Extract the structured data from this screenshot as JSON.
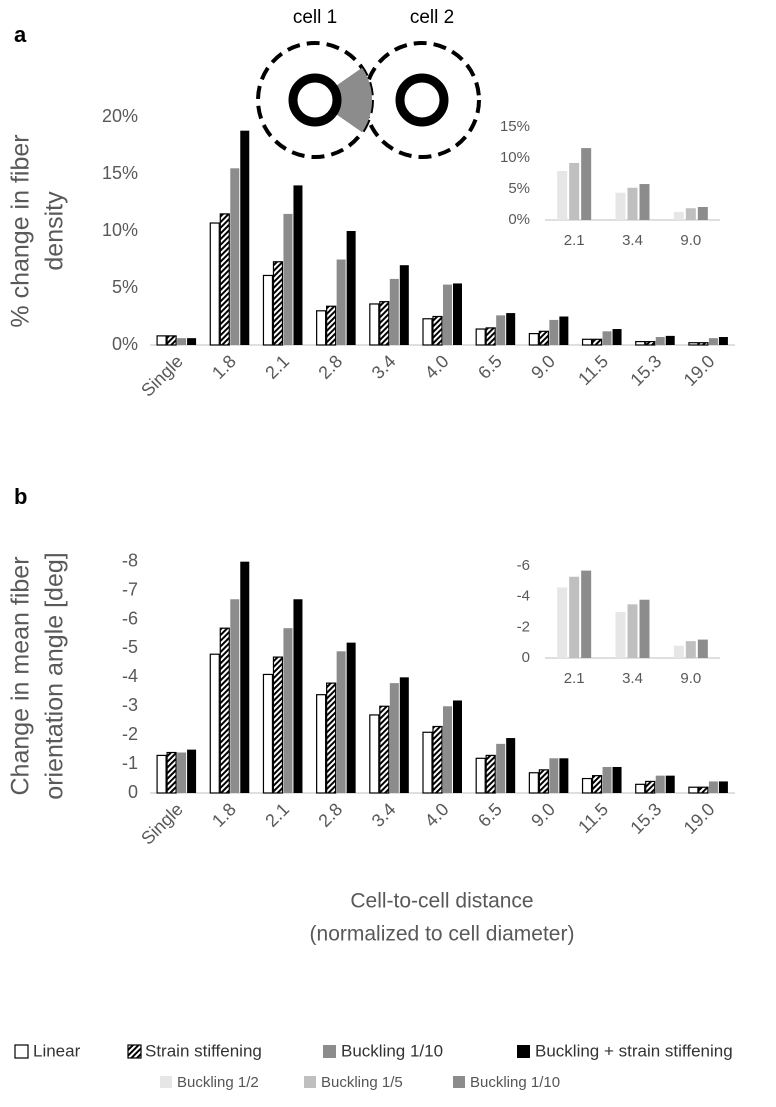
{
  "panels": [
    "a",
    "b"
  ],
  "annotations": [
    "cell 1",
    "cell 2"
  ],
  "chart_data": [
    {
      "type": "bar",
      "ylabel": [
        "% change in fiber",
        "density"
      ],
      "categories": [
        "Single",
        "1.8",
        "2.1",
        "2.8",
        "3.4",
        "4.0",
        "6.5",
        "9.0",
        "11.5",
        "15.3",
        "19.0"
      ],
      "ylim": [
        0,
        20
      ],
      "yticks": [
        {
          "value": 0,
          "label": "0%"
        },
        {
          "value": 5,
          "label": "5%"
        },
        {
          "value": 10,
          "label": "10%"
        },
        {
          "value": 15,
          "label": "15%"
        },
        {
          "value": 20,
          "label": "20%"
        }
      ],
      "series": [
        {
          "name": "Linear",
          "color": "#ffffff",
          "values": [
            0.8,
            10.7,
            6.1,
            3.0,
            3.6,
            2.3,
            1.4,
            1.0,
            0.5,
            0.3,
            0.2
          ]
        },
        {
          "name": "Strain stiffening",
          "color": "#000000",
          "hatch": true,
          "values": [
            0.8,
            11.5,
            7.3,
            3.4,
            3.8,
            2.5,
            1.5,
            1.2,
            0.5,
            0.3,
            0.2
          ]
        },
        {
          "name": "Buckling 1/10",
          "color": "#8c8c8c",
          "values": [
            0.6,
            15.5,
            11.5,
            7.5,
            5.8,
            5.3,
            2.6,
            2.2,
            1.2,
            0.7,
            0.6
          ]
        },
        {
          "name": "Buckling + strain stiffening",
          "color": "#000000",
          "values": [
            0.6,
            18.8,
            14.0,
            10.0,
            7.0,
            5.4,
            2.8,
            2.5,
            1.4,
            0.8,
            0.7
          ]
        }
      ]
    },
    {
      "type": "bar",
      "categories": [
        "2.1",
        "3.4",
        "9.0"
      ],
      "ylim": [
        0,
        15
      ],
      "yticks": [
        {
          "value": 0,
          "label": "0%"
        },
        {
          "value": 5,
          "label": "5%"
        },
        {
          "value": 10,
          "label": "10%"
        },
        {
          "value": 15,
          "label": "15%"
        }
      ],
      "series": [
        {
          "name": "Buckling 1/2",
          "color": "#e6e6e6",
          "values": [
            7.9,
            4.4,
            1.3
          ]
        },
        {
          "name": "Buckling 1/5",
          "color": "#bfbfbf",
          "values": [
            9.2,
            5.2,
            1.9
          ]
        },
        {
          "name": "Buckling 1/10",
          "color": "#8c8c8c",
          "values": [
            11.6,
            5.8,
            2.1
          ]
        }
      ]
    },
    {
      "type": "bar",
      "ylabel": [
        "Change in mean fiber",
        "orientation angle [deg]"
      ],
      "xlabel": [
        "Cell-to-cell distance",
        "(normalized to cell diameter)"
      ],
      "categories": [
        "Single",
        "1.8",
        "2.1",
        "2.8",
        "3.4",
        "4.0",
        "6.5",
        "9.0",
        "11.5",
        "15.3",
        "19.0"
      ],
      "ylim": [
        0,
        -8.3
      ],
      "yticks": [
        0,
        -1,
        -2,
        -3,
        -4,
        -5,
        -6,
        -7,
        -8
      ],
      "series": [
        {
          "color": "#ffffff",
          "values": [
            -1.3,
            -4.8,
            -4.1,
            -3.4,
            -2.7,
            -2.1,
            -1.2,
            -0.7,
            -0.5,
            -0.3,
            -0.2
          ]
        },
        {
          "color": "#000000",
          "hatch": true,
          "values": [
            -1.4,
            -5.7,
            -4.7,
            -3.8,
            -3.0,
            -2.3,
            -1.3,
            -0.8,
            -0.6,
            -0.4,
            -0.2
          ]
        },
        {
          "color": "#8c8c8c",
          "values": [
            -1.4,
            -6.7,
            -5.7,
            -4.9,
            -3.8,
            -3.0,
            -1.7,
            -1.2,
            -0.9,
            -0.6,
            -0.4
          ]
        },
        {
          "color": "#000000",
          "values": [
            -1.5,
            -8.0,
            -6.7,
            -5.2,
            -4.0,
            -3.2,
            -1.9,
            -1.2,
            -0.9,
            -0.6,
            -0.4
          ]
        }
      ]
    },
    {
      "type": "bar",
      "categories": [
        "2.1",
        "3.4",
        "9.0"
      ],
      "ylim": [
        0,
        -6
      ],
      "yticks": [
        0,
        -2,
        -4,
        -6
      ],
      "series": [
        {
          "color": "#e6e6e6",
          "values": [
            -4.6,
            -3.0,
            -0.8
          ]
        },
        {
          "color": "#bfbfbf",
          "values": [
            -5.3,
            -3.5,
            -1.1
          ]
        },
        {
          "color": "#8c8c8c",
          "values": [
            -5.7,
            -3.8,
            -1.2
          ]
        }
      ]
    }
  ]
}
